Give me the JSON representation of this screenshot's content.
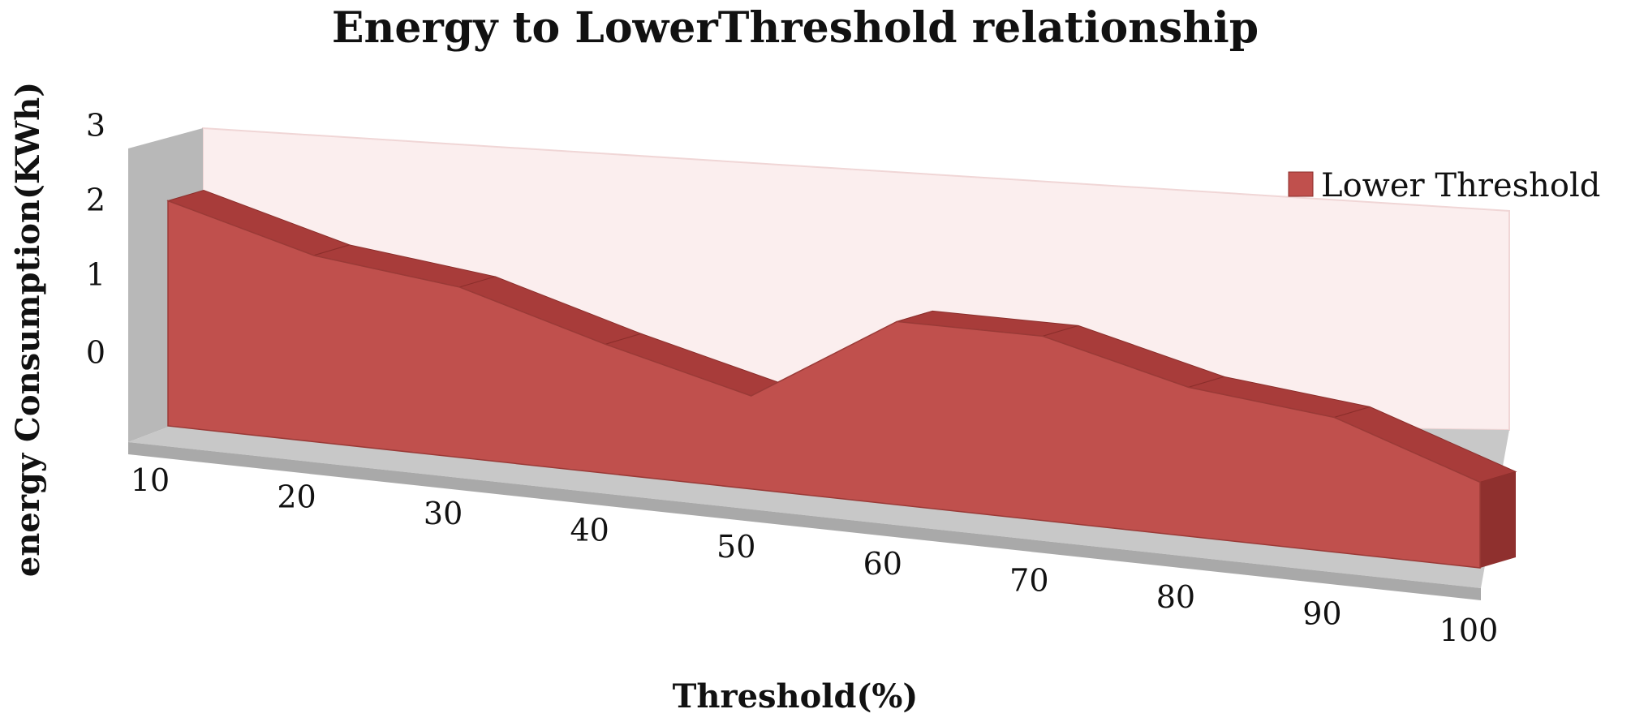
{
  "chart_data": {
    "type": "area",
    "title": "Energy to LowerThreshold relationship",
    "xlabel": "Threshold(%)",
    "ylabel": "energy Consumption(KWh)",
    "categories": [
      "10",
      "20",
      "30",
      "40",
      "50",
      "60",
      "70",
      "80",
      "90",
      "100"
    ],
    "series": [
      {
        "name": "Lower Threshold",
        "values": [
          2.5,
          2.1,
          1.95,
          1.5,
          1.1,
          2.2,
          2.25,
          1.85,
          1.7,
          1.1
        ],
        "color": "#c0504d"
      }
    ],
    "yticks": [
      "0",
      "1",
      "2",
      "3"
    ],
    "ylim": [
      0,
      3
    ],
    "style": "3d-area",
    "grid": false,
    "legend_position": "top-right"
  }
}
